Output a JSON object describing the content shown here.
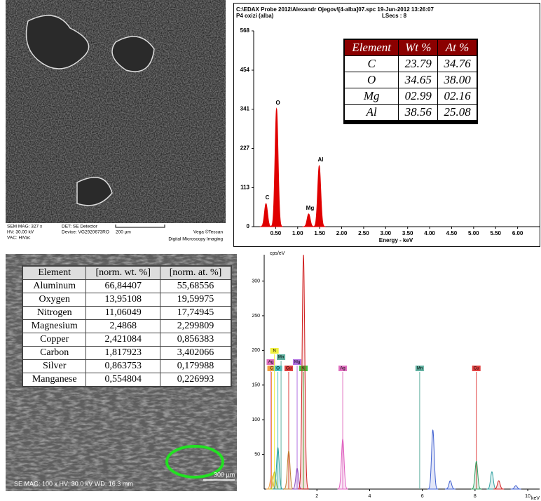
{
  "sem_top": {
    "mag": "SEM MAG: 327 x",
    "hv": "HV:  30.00 kV",
    "vac": "VAC: HiVac",
    "det": "DET: SE Detector",
    "device": "Device: VG2920673RO",
    "scale": "200 µm",
    "vendor": "Vega ©Tescan",
    "imaging": "Digital Microscopy Imaging"
  },
  "chart_data": [
    {
      "type": "spectrum",
      "header": "C:\\EDAX Probe 2012\\Alexandr Ojegov\\[4-alba]07.spc  19-Jun-2012 13:26:07",
      "sample": "P4 oxizi (alba)",
      "lsecs": "LSecs :  8",
      "x_label": "Energy - keV",
      "xlim": [
        0,
        6.5
      ],
      "ylim": [
        0,
        568
      ],
      "xticks": [
        {
          "value": 0.5,
          "label": "0.50"
        },
        {
          "value": 1,
          "label": "1.00"
        },
        {
          "value": 1.5,
          "label": "1.50"
        },
        {
          "value": 2,
          "label": "2.00"
        },
        {
          "value": 2.5,
          "label": "2.50"
        },
        {
          "value": 3,
          "label": "3.00"
        },
        {
          "value": 3.5,
          "label": "3.50"
        },
        {
          "value": 4,
          "label": "4.00"
        },
        {
          "value": 4.5,
          "label": "4.50"
        },
        {
          "value": 5,
          "label": "5.00"
        },
        {
          "value": 5.5,
          "label": "5.50"
        },
        {
          "value": 6,
          "label": "6.00"
        }
      ],
      "yticks": [
        568,
        454,
        341,
        227,
        113,
        0
      ],
      "color": "#e00000",
      "peaks": [
        {
          "label": "C",
          "x": 0.28,
          "y": 67
        },
        {
          "label": "O",
          "x": 0.52,
          "y": 342
        },
        {
          "label": "Mg",
          "x": 1.25,
          "y": 37
        },
        {
          "label": "Al",
          "x": 1.49,
          "y": 177
        }
      ],
      "table": {
        "header": [
          "Element",
          "Wt %",
          "At %"
        ],
        "rows": [
          [
            "C",
            "23.79",
            "34.76"
          ],
          [
            "O",
            "34.65",
            "38.00"
          ],
          [
            "Mg",
            "02.99",
            "02.16"
          ],
          [
            "Al",
            "38.56",
            "25.08"
          ]
        ]
      }
    },
    {
      "type": "spectrum",
      "y_label": "cps/eV",
      "x_label": "keV",
      "xlim": [
        0,
        10.45
      ],
      "ylim": [
        0,
        338
      ],
      "xticks": [
        2,
        4,
        6,
        8,
        10
      ],
      "yticks": [
        50,
        100,
        150,
        200,
        250,
        300
      ],
      "markers": [
        {
          "label": "Ag",
          "x": 0.25,
          "color": "#e070c0"
        },
        {
          "label": "C",
          "x": 0.28,
          "color": "#f0a040"
        },
        {
          "label": "O",
          "x": 0.52,
          "color": "#40c0c0"
        },
        {
          "label": "N",
          "x": 0.39,
          "color": "#f0f040"
        },
        {
          "label": "Mn",
          "x": 0.64,
          "color": "#60b0a0"
        },
        {
          "label": "Cu",
          "x": 0.93,
          "color": "#e04040"
        },
        {
          "label": "Mg",
          "x": 1.25,
          "color": "#b070e0"
        },
        {
          "label": "Al",
          "x": 1.49,
          "color": "#40c040"
        },
        {
          "label": "Ag",
          "x": 2.98,
          "color": "#e070c0"
        },
        {
          "label": "Mn",
          "x": 5.9,
          "color": "#60b0a0"
        },
        {
          "label": "Cu",
          "x": 8.05,
          "color": "#e04040"
        }
      ],
      "peaks": [
        {
          "x": 0.28,
          "y": 20,
          "color": "#f0a040"
        },
        {
          "x": 0.39,
          "y": 25,
          "color": "#c0c020"
        },
        {
          "x": 0.52,
          "y": 60,
          "color": "#30a0a0"
        },
        {
          "x": 0.93,
          "y": 55,
          "color": "#c08030"
        },
        {
          "x": 1.25,
          "y": 30,
          "color": "#9050c0"
        },
        {
          "x": 1.49,
          "y": 338,
          "color": "#d02020"
        },
        {
          "x": 2.98,
          "y": 72,
          "color": "#e060c0"
        },
        {
          "x": 6.4,
          "y": 85,
          "color": "#4060d0"
        },
        {
          "x": 7.06,
          "y": 12,
          "color": "#4060d0"
        },
        {
          "x": 8.05,
          "y": 40,
          "color": "#30a060"
        },
        {
          "x": 8.64,
          "y": 25,
          "color": "#30a0a0"
        },
        {
          "x": 8.9,
          "y": 12,
          "color": "#d02020"
        },
        {
          "x": 9.55,
          "y": 5,
          "color": "#4060d0"
        }
      ]
    }
  ],
  "sem_bottom": {
    "caption": "SE  MAG: 100 x  HV: 30.0 kV  WD: 16.3 mm",
    "scale": "300 µm",
    "table": {
      "header": [
        "Element",
        "[norm. wt. %]",
        "[norm. at. %]"
      ],
      "rows": [
        [
          "Aluminum",
          "66,84407",
          "55,68556"
        ],
        [
          "Oxygen",
          "13,95108",
          "19,59975"
        ],
        [
          "Nitrogen",
          "11,06049",
          "17,74945"
        ],
        [
          "Magnesium",
          "2,4868",
          "2,299809"
        ],
        [
          "Copper",
          "2,421084",
          "0,856383"
        ],
        [
          "Carbon",
          "1,817923",
          "3,402066"
        ],
        [
          "Silver",
          "0,863753",
          "0,179988"
        ],
        [
          "Manganese",
          "0,554804",
          "0,226993"
        ]
      ]
    }
  }
}
